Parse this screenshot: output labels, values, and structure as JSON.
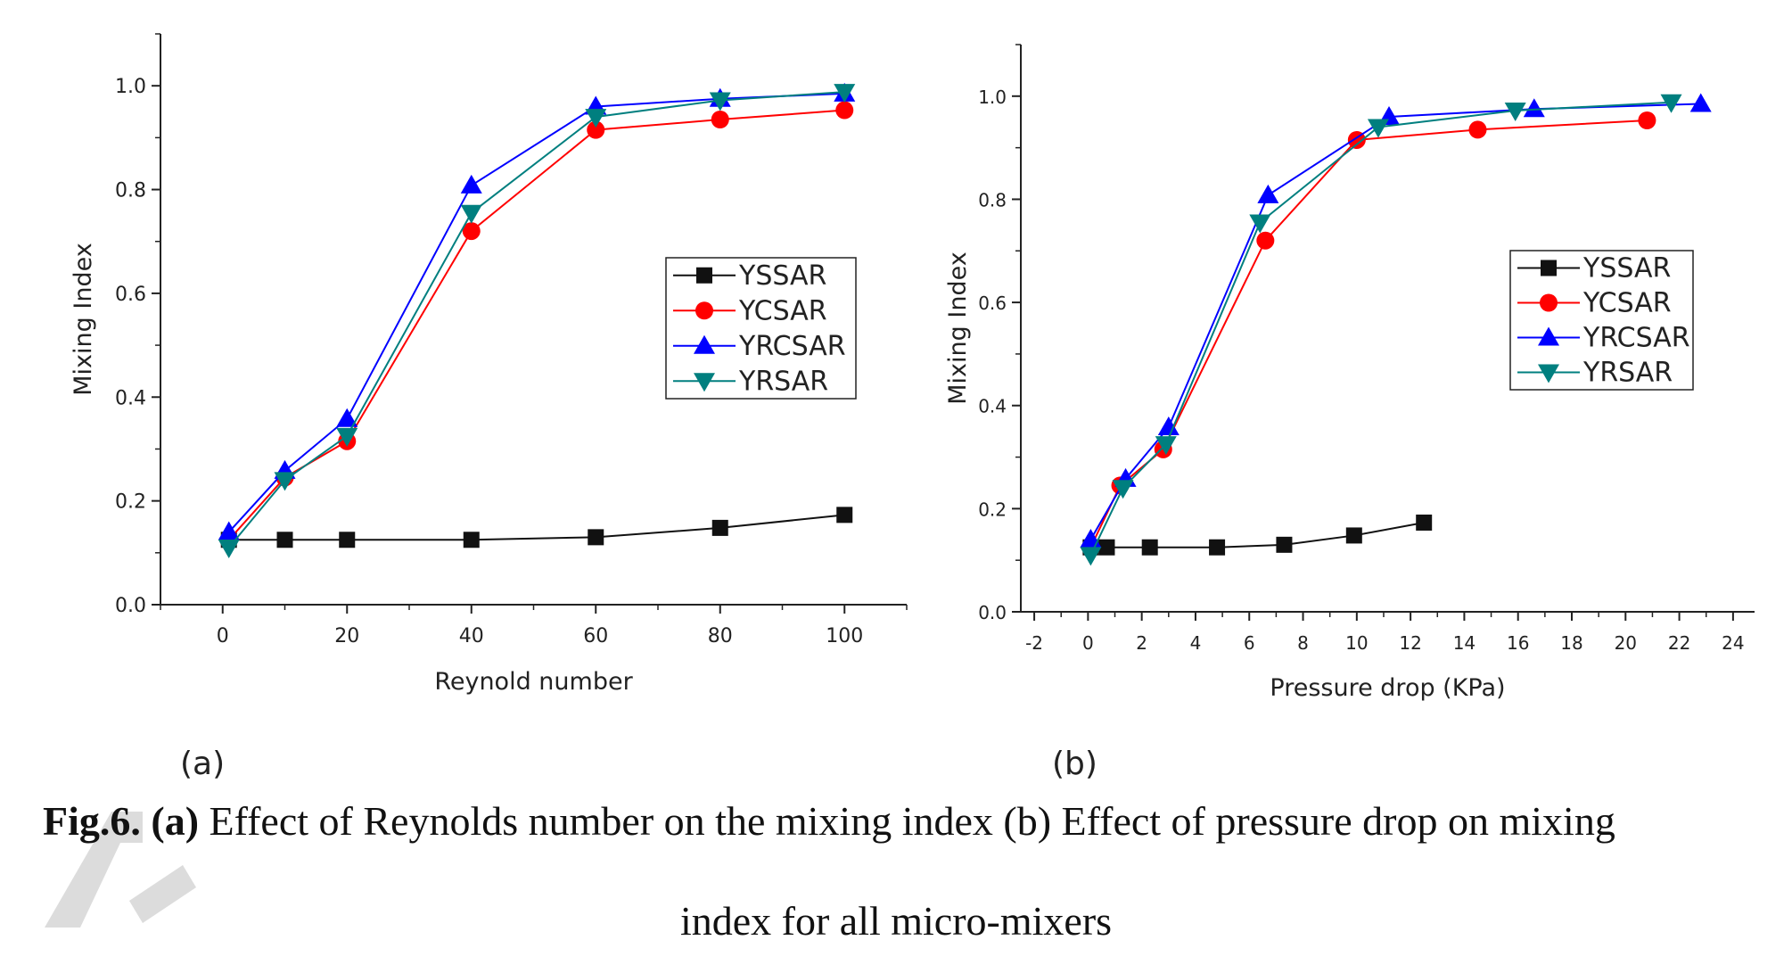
{
  "caption": {
    "label": "Fig.6.",
    "part_a": "(a)",
    "text_a": " Effect of Reynolds number on the mixing index ",
    "text_b": "(b) Effect of pressure drop on mixing",
    "line2": "index for all micro-mixers"
  },
  "panel_labels": [
    "(a)",
    "(b)"
  ],
  "chart_data": [
    {
      "type": "line",
      "panel": "(a)",
      "xlabel": "Reynold number",
      "ylabel": "Mixing Index",
      "xlim": [
        -10,
        110
      ],
      "ylim": [
        0,
        1.1
      ],
      "xticks": [
        0,
        20,
        40,
        60,
        80,
        100
      ],
      "yticks": [
        0.0,
        0.2,
        0.4,
        0.6,
        0.8,
        1.0
      ],
      "xtick_labels": [
        "0",
        "20",
        "40",
        "60",
        "80",
        "100"
      ],
      "ytick_labels": [
        "0.0",
        "0.2",
        "0.4",
        "0.6",
        "0.8",
        "1.0"
      ],
      "legend_position": "center-right",
      "series": [
        {
          "name": "YSSAR",
          "color": "#111111",
          "marker": "square",
          "x": [
            1,
            10,
            20,
            40,
            60,
            80,
            100
          ],
          "y": [
            0.125,
            0.125,
            0.125,
            0.125,
            0.13,
            0.148,
            0.173
          ]
        },
        {
          "name": "YCSAR",
          "color": "#ff0000",
          "marker": "circle",
          "x": [
            1,
            10,
            20,
            40,
            60,
            80,
            100
          ],
          "y": [
            0.125,
            0.245,
            0.315,
            0.72,
            0.915,
            0.935,
            0.953
          ]
        },
        {
          "name": "YRCSAR",
          "color": "#0000ff",
          "marker": "triangle-up",
          "x": [
            1,
            10,
            20,
            40,
            60,
            80,
            100
          ],
          "y": [
            0.14,
            0.258,
            0.358,
            0.808,
            0.96,
            0.975,
            0.985
          ]
        },
        {
          "name": "YRSAR",
          "color": "#007f7f",
          "marker": "triangle-down",
          "x": [
            1,
            10,
            20,
            40,
            60,
            80,
            100
          ],
          "y": [
            0.11,
            0.24,
            0.325,
            0.755,
            0.94,
            0.972,
            0.988
          ]
        }
      ]
    },
    {
      "type": "line",
      "panel": "(b)",
      "xlabel": "Pressure drop (KPa)",
      "ylabel": "Mixing Index",
      "xlim": [
        -2.5,
        24.8
      ],
      "ylim": [
        0,
        1.1
      ],
      "xticks": [
        -2,
        0,
        2,
        4,
        6,
        8,
        10,
        12,
        14,
        16,
        18,
        20,
        22,
        24
      ],
      "yticks": [
        0.0,
        0.2,
        0.4,
        0.6,
        0.8,
        1.0
      ],
      "xtick_labels": [
        "-2",
        "0",
        "2",
        "4",
        "6",
        "8",
        "10",
        "12",
        "14",
        "16",
        "18",
        "20",
        "22",
        "24"
      ],
      "ytick_labels": [
        "0.0",
        "0.2",
        "0.4",
        "0.6",
        "0.8",
        "1.0"
      ],
      "legend_position": "center-right",
      "series": [
        {
          "name": "YSSAR",
          "color": "#111111",
          "marker": "square",
          "x": [
            0.1,
            0.7,
            2.3,
            4.8,
            7.3,
            9.9,
            12.5
          ],
          "y": [
            0.125,
            0.125,
            0.125,
            0.125,
            0.13,
            0.148,
            0.173
          ]
        },
        {
          "name": "YCSAR",
          "color": "#ff0000",
          "marker": "circle",
          "x": [
            0.1,
            1.2,
            2.8,
            6.6,
            10.0,
            14.5,
            20.8
          ],
          "y": [
            0.125,
            0.245,
            0.315,
            0.72,
            0.915,
            0.935,
            0.953
          ]
        },
        {
          "name": "YRCSAR",
          "color": "#0000ff",
          "marker": "triangle-up",
          "x": [
            0.1,
            1.4,
            3.0,
            6.7,
            11.2,
            16.6,
            22.8
          ],
          "y": [
            0.14,
            0.258,
            0.358,
            0.808,
            0.96,
            0.975,
            0.985
          ]
        },
        {
          "name": "YRSAR",
          "color": "#007f7f",
          "marker": "triangle-down",
          "x": [
            0.1,
            1.3,
            2.9,
            6.4,
            10.8,
            15.9,
            21.7
          ],
          "y": [
            0.11,
            0.24,
            0.325,
            0.755,
            0.94,
            0.972,
            0.988
          ]
        }
      ]
    }
  ]
}
